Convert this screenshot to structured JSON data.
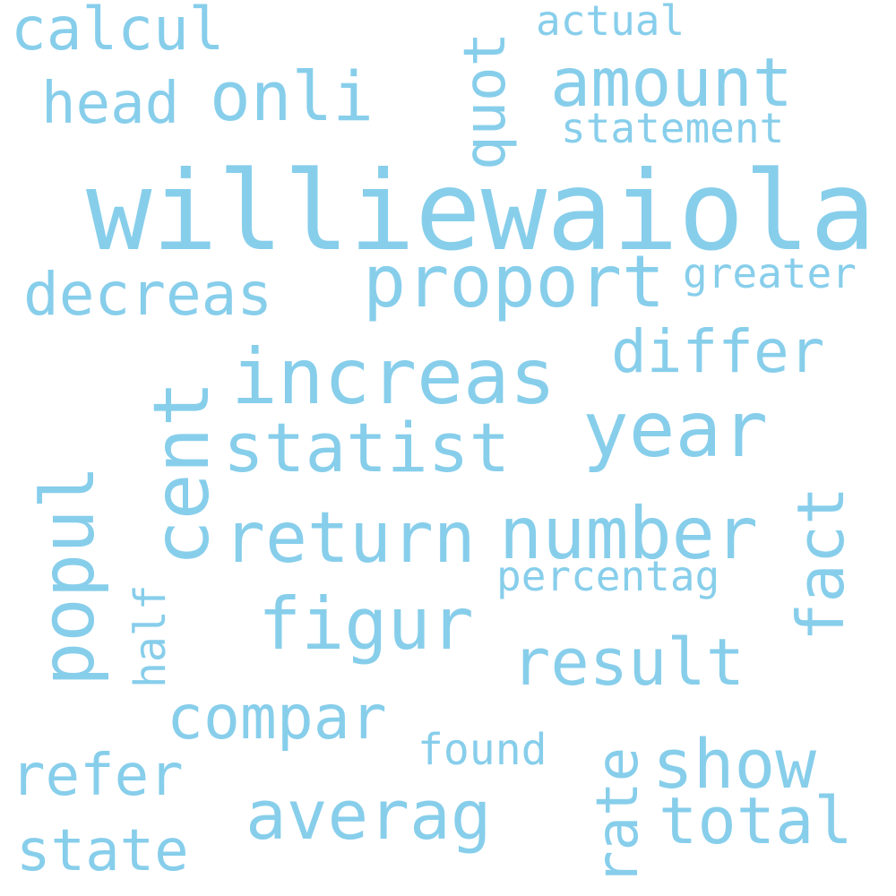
{
  "text_color": "#87ceeb",
  "background_color": "#ffffff",
  "words": {
    "williewaiola": "williewaiola",
    "increas": "increas",
    "year": "year",
    "proport": "proport",
    "number": "number",
    "figur": "figur",
    "return": "return",
    "statist": "statist",
    "amount": "amount",
    "onli": "onli",
    "averag": "averag",
    "show": "show",
    "result": "result",
    "total": "total",
    "compar": "compar",
    "decreas": "decreas",
    "differ": "differ",
    "calcul": "calcul",
    "head": "head",
    "refer": "refer",
    "state": "state",
    "statement": "statement",
    "actual": "actual",
    "greater": "greater",
    "percentag": "percentag",
    "found": "found",
    "cent": "cent",
    "popul": "popul",
    "fact": "fact",
    "quot": "quot",
    "rate": "rate",
    "half": "half"
  }
}
